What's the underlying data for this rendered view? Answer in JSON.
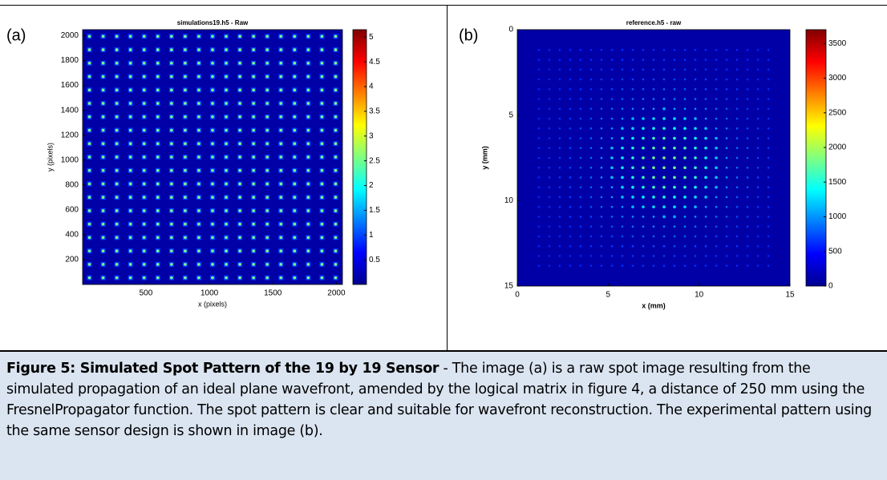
{
  "chart_data": [
    {
      "type": "heatmap",
      "panel_label": "(a)",
      "title": "simulations19.h5 - Raw",
      "x_label": "x (pixels)",
      "y_label": "y (pixels)",
      "xlim": [
        1,
        2048
      ],
      "xticks": [
        500,
        1000,
        1500,
        2000
      ],
      "ylim": [
        1,
        2048
      ],
      "yticks": [
        200,
        400,
        600,
        800,
        1000,
        1200,
        1400,
        1600,
        1800,
        2000
      ],
      "y_reversed": false,
      "clim": [
        0,
        5.15
      ],
      "cticks": [
        0.5,
        1,
        1.5,
        2,
        2.5,
        3,
        3.5,
        4,
        4.5,
        5
      ],
      "colormap": "jet"
    },
    {
      "type": "heatmap",
      "panel_label": "(b)",
      "title": "reference.h5 - raw",
      "x_label": "x (mm)",
      "y_label": "y (mm)",
      "xlim": [
        0,
        15
      ],
      "xticks": [
        0,
        5,
        10,
        15
      ],
      "ylim": [
        0,
        15
      ],
      "yticks": [
        0,
        5,
        10,
        15
      ],
      "y_reversed": true,
      "clim": [
        0,
        3700
      ],
      "cticks": [
        0,
        500,
        1000,
        1500,
        2000,
        2500,
        3000,
        3500
      ],
      "colormap": "jet"
    }
  ],
  "caption": {
    "title": "Figure 5: Simulated Spot Pattern of the 19 by 19 Sensor",
    "text": "- The image (a) is a raw spot image resulting from the simulated propagation of an ideal plane wavefront, amended by the logical matrix in figure 4, a distance of 250 mm using the FresnelPropagator function. The spot pattern is clear and suitable for wavefront reconstruction. The experimental pattern using the same sensor design is shown in image (b)."
  }
}
